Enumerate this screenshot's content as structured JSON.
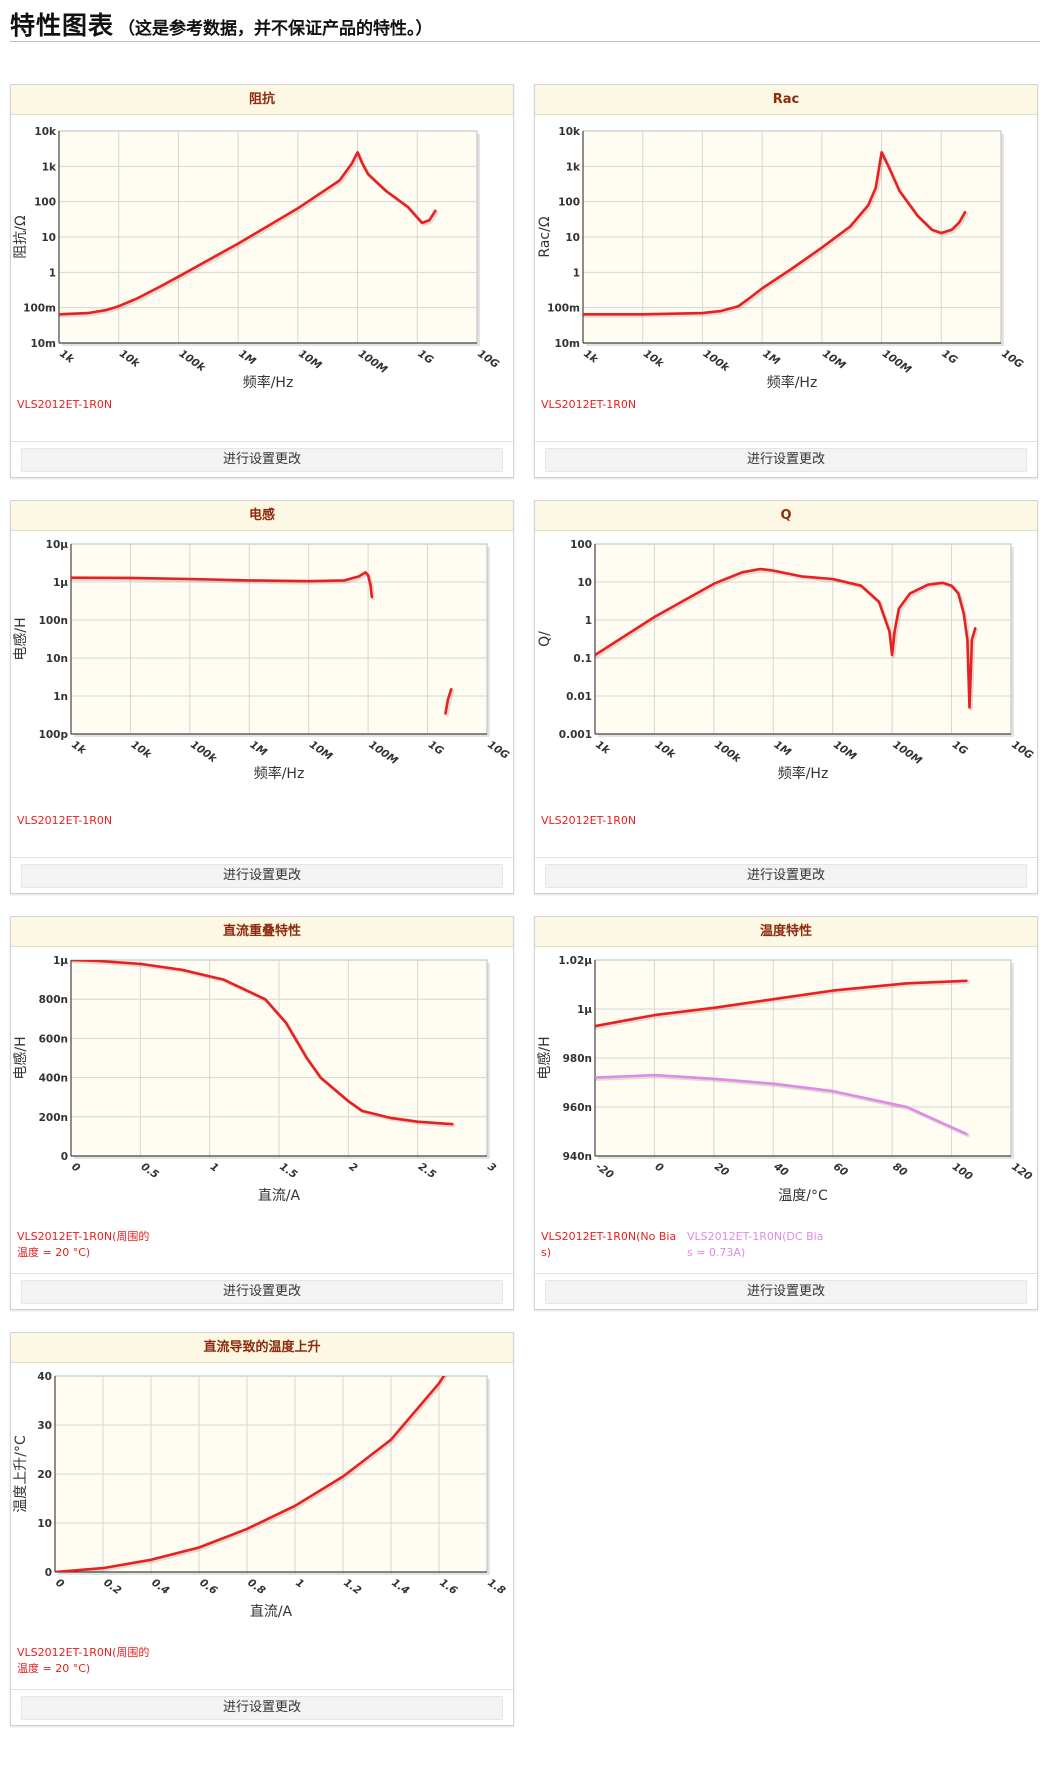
{
  "page": {
    "title": "特性图表",
    "note": "（这是参考数据，并不保证产品的特性。）",
    "footer_button_label": "进行设置更改"
  },
  "colors": {
    "primary_series": "#e82020",
    "secondary_series": "#e08ae8",
    "plot_bg": "#fffcf2",
    "grid": "#d6d6d6",
    "header_bg": "#fdf8e3",
    "header_text": "#8c2b0e"
  },
  "chart_data": [
    {
      "id": "impedance",
      "title": "阻抗",
      "type": "line",
      "xscale": "log",
      "yscale": "log",
      "xlim": [
        1000,
        10000000000
      ],
      "ylim": [
        0.01,
        10000
      ],
      "xticks": [
        1000,
        10000,
        100000,
        1000000,
        10000000,
        100000000,
        1000000000,
        10000000000
      ],
      "xticklabels": [
        "1k",
        "10k",
        "100k",
        "1M",
        "10M",
        "100M",
        "1G",
        "10G"
      ],
      "yticks": [
        0.01,
        0.1,
        1,
        10,
        100,
        1000,
        10000
      ],
      "yticklabels": [
        "10m",
        "100m",
        "1",
        "10",
        "100",
        "1k",
        "10k"
      ],
      "xlabel": "频率/Hz",
      "ylabel": "阻抗/Ω",
      "grid": true,
      "series": [
        {
          "name": "VLS2012ET-1R0N",
          "color": "#e82020",
          "x": [
            1000,
            3000,
            6000,
            10000,
            20000,
            50000,
            100000,
            1000000,
            10000000,
            50000000,
            80000000,
            100000000,
            120000000,
            150000000,
            300000000,
            700000000,
            1200000000,
            1600000000,
            2000000000
          ],
          "y": [
            0.065,
            0.07,
            0.085,
            0.11,
            0.18,
            0.4,
            0.75,
            6.5,
            65,
            400,
            1200,
            2500,
            1200,
            600,
            200,
            70,
            25,
            30,
            55
          ]
        }
      ]
    },
    {
      "id": "rac",
      "title": "Rac",
      "type": "line",
      "xscale": "log",
      "yscale": "log",
      "xlim": [
        1000,
        10000000000
      ],
      "ylim": [
        0.01,
        10000
      ],
      "xticks": [
        1000,
        10000,
        100000,
        1000000,
        10000000,
        100000000,
        1000000000,
        10000000000
      ],
      "xticklabels": [
        "1k",
        "10k",
        "100k",
        "1M",
        "10M",
        "100M",
        "1G",
        "10G"
      ],
      "yticks": [
        0.01,
        0.1,
        1,
        10,
        100,
        1000,
        10000
      ],
      "yticklabels": [
        "10m",
        "100m",
        "1",
        "10",
        "100",
        "1k",
        "10k"
      ],
      "xlabel": "频率/Hz",
      "ylabel": "Rac/Ω",
      "grid": true,
      "series": [
        {
          "name": "VLS2012ET-1R0N",
          "color": "#e82020",
          "x": [
            1000,
            10000,
            100000,
            200000,
            400000,
            600000,
            1000000,
            3000000,
            10000000,
            30000000,
            60000000,
            80000000,
            100000000,
            130000000,
            200000000,
            400000000,
            700000000,
            1000000000,
            1500000000,
            2000000000,
            2500000000
          ],
          "y": [
            0.065,
            0.065,
            0.07,
            0.08,
            0.11,
            0.18,
            0.35,
            1.2,
            5,
            20,
            80,
            250,
            2500,
            1000,
            200,
            40,
            16,
            13,
            16,
            26,
            50
          ]
        }
      ]
    },
    {
      "id": "inductance",
      "title": "电感",
      "type": "line",
      "xscale": "log",
      "yscale": "log",
      "xlim": [
        1000,
        10000000000
      ],
      "ylim": [
        1e-10,
        1e-05
      ],
      "xticks": [
        1000,
        10000,
        100000,
        1000000,
        10000000,
        100000000,
        1000000000,
        10000000000
      ],
      "xticklabels": [
        "1k",
        "10k",
        "100k",
        "1M",
        "10M",
        "100M",
        "1G",
        "10G"
      ],
      "yticks": [
        1e-10,
        1e-09,
        1e-08,
        1e-07,
        1e-06,
        1e-05
      ],
      "yticklabels": [
        "100p",
        "1n",
        "10n",
        "100n",
        "1μ",
        "10μ"
      ],
      "xlabel": "频率/Hz",
      "ylabel": "电感/H",
      "grid": true,
      "series": [
        {
          "name": "VLS2012ET-1R0N",
          "color": "#e82020",
          "segments": [
            {
              "x": [
                1000,
                10000,
                100000,
                1000000,
                10000000,
                40000000,
                70000000,
                90000000,
                100000000,
                110000000,
                115000000
              ],
              "y": [
                1.3e-06,
                1.28e-06,
                1.2e-06,
                1.1e-06,
                1.05e-06,
                1.1e-06,
                1.4e-06,
                1.8e-06,
                1.5e-06,
                8e-07,
                4e-07
              ]
            },
            {
              "x": [
                2000000000,
                2200000000,
                2500000000
              ],
              "y": [
                3.5e-10,
                8e-10,
                1.5e-09
              ]
            }
          ]
        }
      ]
    },
    {
      "id": "q",
      "title": "Q",
      "type": "line",
      "xscale": "log",
      "yscale": "log",
      "xlim": [
        1000,
        10000000000
      ],
      "ylim": [
        0.001,
        100
      ],
      "xticks": [
        1000,
        10000,
        100000,
        1000000,
        10000000,
        100000000,
        1000000000,
        10000000000
      ],
      "xticklabels": [
        "1k",
        "10k",
        "100k",
        "1M",
        "10M",
        "100M",
        "1G",
        "10G"
      ],
      "yticks": [
        0.001,
        0.01,
        0.1,
        1,
        10,
        100
      ],
      "yticklabels": [
        "0.001",
        "0.01",
        "0.1",
        "1",
        "10",
        "100"
      ],
      "xlabel": "频率/Hz",
      "ylabel": "Q/",
      "grid": true,
      "series": [
        {
          "name": "VLS2012ET-1R0N",
          "color": "#e82020",
          "x": [
            1000,
            10000,
            100000,
            300000,
            600000,
            1000000,
            3000000,
            10000000,
            30000000,
            60000000,
            90000000,
            100000000,
            110000000,
            130000000,
            200000000,
            400000000,
            700000000,
            1000000000,
            1300000000,
            1600000000,
            1850000000,
            2000000000,
            2200000000,
            2500000000
          ],
          "y": [
            0.12,
            1.2,
            9,
            18,
            22,
            20,
            14,
            12,
            8,
            3,
            0.5,
            0.12,
            0.5,
            2,
            5,
            8.5,
            9.5,
            8,
            5,
            1.5,
            0.3,
            0.005,
            0.3,
            0.6
          ]
        }
      ]
    },
    {
      "id": "dc-bias",
      "title": "直流重叠特性",
      "type": "line",
      "xscale": "linear",
      "yscale": "linear",
      "xlim": [
        0,
        3
      ],
      "ylim": [
        0,
        1e-06
      ],
      "xticks": [
        0,
        0.5,
        1,
        1.5,
        2,
        2.5,
        3
      ],
      "xticklabels": [
        "0",
        "0.5",
        "1",
        "1.5",
        "2",
        "2.5",
        "3"
      ],
      "yticks": [
        0,
        2e-07,
        4e-07,
        6e-07,
        8e-07,
        1e-06
      ],
      "yticklabels": [
        "0",
        "200n",
        "400n",
        "600n",
        "800n",
        "1μ"
      ],
      "xlabel": "直流/A",
      "ylabel": "电感/H",
      "grid": true,
      "series": [
        {
          "name": "VLS2012ET-1R0N(周围的温度 = 20 °C)",
          "color": "#e82020",
          "x": [
            0,
            0.2,
            0.5,
            0.8,
            1.1,
            1.4,
            1.55,
            1.7,
            1.8,
            1.9,
            2.0,
            2.1,
            2.3,
            2.5,
            2.7,
            2.75
          ],
          "y": [
            1e-06,
            9.95e-07,
            9.8e-07,
            9.5e-07,
            9e-07,
            8e-07,
            6.8e-07,
            5e-07,
            4e-07,
            3.4e-07,
            2.8e-07,
            2.3e-07,
            1.95e-07,
            1.75e-07,
            1.65e-07,
            1.63e-07
          ]
        }
      ]
    },
    {
      "id": "temperature",
      "title": "温度特性",
      "type": "line",
      "xscale": "linear",
      "yscale": "linear",
      "xlim": [
        -20,
        120
      ],
      "ylim": [
        9.4e-07,
        1.02e-06
      ],
      "xticks": [
        -20,
        0,
        20,
        40,
        60,
        80,
        100,
        120
      ],
      "xticklabels": [
        "-20",
        "0",
        "20",
        "40",
        "60",
        "80",
        "100",
        "120"
      ],
      "yticks": [
        9.4e-07,
        9.6e-07,
        9.8e-07,
        1e-06,
        1.02e-06
      ],
      "yticklabels": [
        "940n",
        "960n",
        "980n",
        "1μ",
        "1.02μ"
      ],
      "xlabel": "温度/°C",
      "ylabel": "电感/H",
      "grid": true,
      "series": [
        {
          "name": "VLS2012ET-1R0N(No Bias)",
          "color": "#e82020",
          "x": [
            -20,
            0,
            20,
            40,
            60,
            85,
            105
          ],
          "y": [
            9.93e-07,
            9.975e-07,
            1.0005e-06,
            1.004e-06,
            1.0075e-06,
            1.0105e-06,
            1.0115e-06
          ]
        },
        {
          "name": "VLS2012ET-1R0N(DC Bias = 0.73A)",
          "color": "#e08ae8",
          "x": [
            -20,
            0,
            20,
            40,
            60,
            85,
            105
          ],
          "y": [
            9.72e-07,
            9.73e-07,
            9.715e-07,
            9.695e-07,
            9.665e-07,
            9.6e-07,
            9.49e-07
          ]
        }
      ]
    },
    {
      "id": "temp-rise",
      "title": "直流导致的温度上升",
      "type": "line",
      "xscale": "linear",
      "yscale": "linear",
      "xlim": [
        0,
        1.8
      ],
      "ylim": [
        0,
        40
      ],
      "xticks": [
        0,
        0.2,
        0.4,
        0.6,
        0.8,
        1,
        1.2,
        1.4,
        1.6,
        1.8
      ],
      "xticklabels": [
        "0",
        "0.2",
        "0.4",
        "0.6",
        "0.8",
        "1",
        "1.2",
        "1.4",
        "1.6",
        "1.8"
      ],
      "yticks": [
        0,
        10,
        20,
        30,
        40
      ],
      "yticklabels": [
        "0",
        "10",
        "20",
        "30",
        "40"
      ],
      "xlabel": "直流/A",
      "ylabel": "温度上升/°C",
      "grid": true,
      "series": [
        {
          "name": "VLS2012ET-1R0N(周围的温度 = 20 °C)",
          "color": "#e82020",
          "x": [
            0,
            0.2,
            0.4,
            0.6,
            0.8,
            1,
            1.2,
            1.4,
            1.6,
            1.62
          ],
          "y": [
            0,
            0.8,
            2.5,
            5,
            8.8,
            13.5,
            19.5,
            27,
            38.5,
            40
          ]
        }
      ]
    }
  ]
}
